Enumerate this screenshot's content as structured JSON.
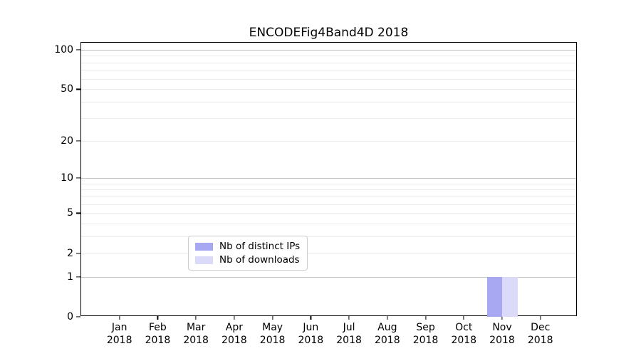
{
  "title": "ENCODEFig4Band4D 2018",
  "chart_data": {
    "type": "bar",
    "title": "ENCODEFig4Band4D 2018",
    "categories": [
      "Jan 2018",
      "Feb 2018",
      "Mar 2018",
      "Apr 2018",
      "May 2018",
      "Jun 2018",
      "Jul 2018",
      "Aug 2018",
      "Sep 2018",
      "Oct 2018",
      "Nov 2018",
      "Dec 2018"
    ],
    "series": [
      {
        "name": "Nb of distinct IPs",
        "color": "#a7a7f2",
        "values": [
          0,
          0,
          0,
          0,
          0,
          0,
          0,
          0,
          0,
          0,
          1,
          0
        ]
      },
      {
        "name": "Nb of downloads",
        "color": "#dbdbf9",
        "values": [
          0,
          0,
          0,
          0,
          0,
          0,
          0,
          0,
          0,
          0,
          1,
          0
        ]
      }
    ],
    "xlabel": "",
    "ylabel": "",
    "yscale": "log1p",
    "ylim": [
      0,
      113
    ],
    "ytick_values": [
      0,
      1,
      2,
      5,
      10,
      20,
      50,
      100
    ],
    "major_grid_values": [
      1,
      10,
      100
    ],
    "minor_grid_values": [
      2,
      3,
      4,
      5,
      6,
      7,
      8,
      9,
      20,
      30,
      40,
      50,
      60,
      70,
      80,
      90
    ],
    "grid": true,
    "legend_position": "lower center"
  },
  "legend": {
    "items": [
      {
        "label": "Nb of distinct IPs",
        "color": "#a7a7f2"
      },
      {
        "label": "Nb of downloads",
        "color": "#dbdbf9"
      }
    ]
  },
  "colors": {
    "background": "#ffffff",
    "spine": "#000000",
    "major_grid": "#c4c4c4",
    "minor_grid": "#ebebeb",
    "text": "#000000",
    "bar_distinct_ips": "#a7a7f2",
    "bar_downloads": "#dbdbf9"
  }
}
